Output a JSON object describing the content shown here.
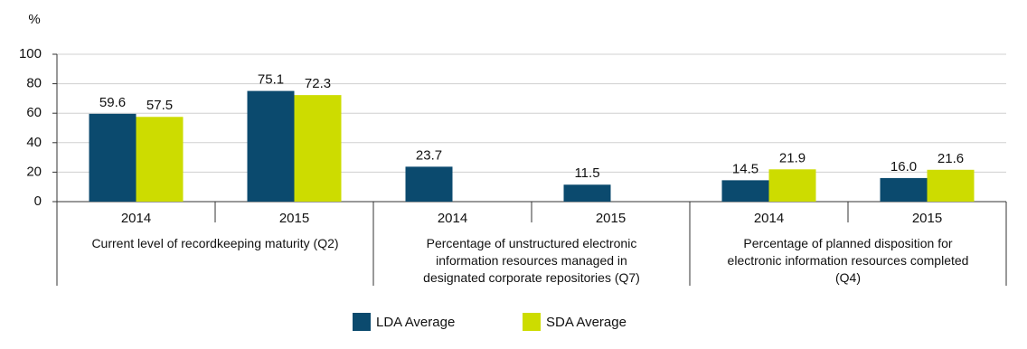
{
  "chart_data": {
    "type": "bar",
    "y_label": "%",
    "groups": [
      {
        "label": "Current level of recordkeeping maturity (Q2)",
        "categories": [
          "2014",
          "2015"
        ]
      },
      {
        "label": "Percentage of unstructured electronic information resources managed in designated corporate repositories (Q7)",
        "categories": [
          "2014",
          "2015"
        ]
      },
      {
        "label": "Percentage of planned disposition for electronic information resources completed (Q4)",
        "categories": [
          "2014",
          "2015"
        ]
      }
    ],
    "series": [
      {
        "name": "LDA Average",
        "color": "#0b4a6e",
        "values": [
          59.6,
          75.1,
          23.7,
          11.5,
          14.5,
          16.0
        ],
        "value_labels": [
          "59.6",
          "75.1",
          "23.7",
          "11.5",
          "14.5",
          "16.0"
        ]
      },
      {
        "name": "SDA Average",
        "color": "#cddc00",
        "values": [
          57.5,
          72.3,
          null,
          null,
          21.9,
          21.6
        ],
        "value_labels": [
          "57.5",
          "72.3",
          null,
          null,
          "21.9",
          "21.6"
        ]
      }
    ],
    "ylim": [
      0,
      100
    ],
    "yticks": [
      0,
      20,
      40,
      60,
      80,
      100
    ],
    "grid": true,
    "legend": "bottom"
  }
}
